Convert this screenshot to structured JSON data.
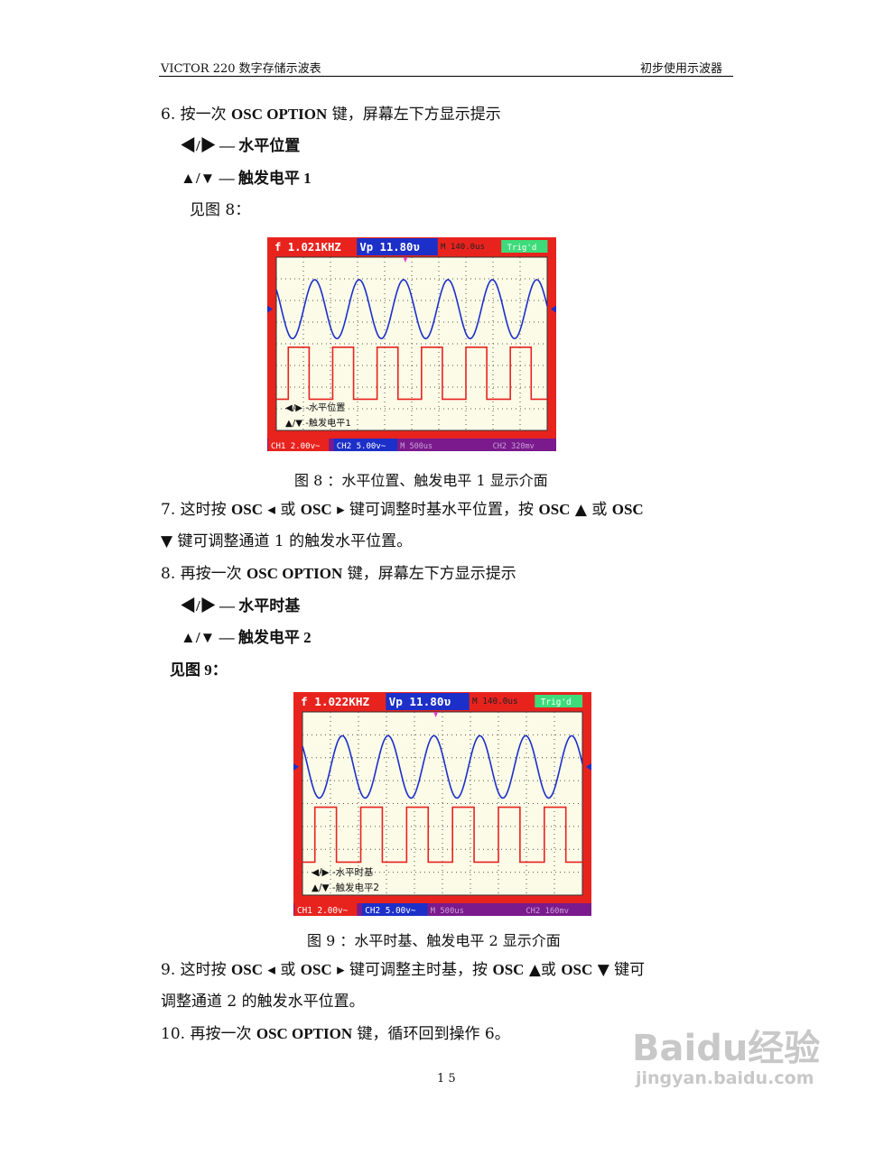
{
  "header": {
    "left": "VICTOR 220 数字存储示波表",
    "right": "初步使用示波器"
  },
  "lines": [
    {
      "parts": [
        [
          "6.  按一次 ",
          0
        ],
        [
          "OSC OPTION",
          1
        ],
        [
          " 键，屏幕左下方显示提示",
          0
        ]
      ]
    },
    {
      "parts": [
        [
          "◀/▶  —  水平位置",
          1
        ]
      ]
    },
    {
      "parts": [
        [
          "▲/▼  —  触发电平 1",
          1
        ]
      ]
    },
    {
      "parts": [
        [
          "见图 8：",
          0
        ]
      ]
    },
    {
      "parts": [
        [
          "7. 这时按 ",
          0
        ],
        [
          "OSC",
          1
        ],
        [
          " ◂ 或 ",
          0
        ],
        [
          "OSC",
          1
        ],
        [
          "  ▸ 键可调整时基水平位置，按 ",
          0
        ],
        [
          "OSC",
          1
        ],
        [
          " ▲ 或 ",
          0
        ],
        [
          "OSC",
          1
        ]
      ]
    },
    {
      "parts": [
        [
          "▼ 键可调整通道 1 的触发水平位置。",
          0
        ]
      ]
    },
    {
      "parts": [
        [
          "8. 再按一次 ",
          0
        ],
        [
          "OSC OPTION",
          1
        ],
        [
          " 键，屏幕左下方显示提示",
          0
        ]
      ]
    },
    {
      "parts": [
        [
          "◀/▶  —  水平时基",
          1
        ]
      ]
    },
    {
      "parts": [
        [
          "▲/▼  —  触发电平 2",
          1
        ]
      ]
    },
    {
      "parts": [
        [
          "见图 9：",
          1
        ]
      ]
    },
    {
      "parts": [
        [
          "9. 这时按 ",
          0
        ],
        [
          "OSC",
          1
        ],
        [
          " ◂ 或 ",
          0
        ],
        [
          "OSC",
          1
        ],
        [
          "  ▸ 键可调整主时基，按 ",
          0
        ],
        [
          "OSC",
          1
        ],
        [
          " ▲或 ",
          0
        ],
        [
          "OSC",
          1
        ],
        [
          " ▼ 键可",
          0
        ]
      ]
    },
    {
      "parts": [
        [
          "调整通道 2 的触发水平位置。",
          0
        ]
      ]
    },
    {
      "parts": [
        [
          "10. 再按一次 ",
          0
        ],
        [
          "OSC OPTION",
          1
        ],
        [
          " 键，循环回到操作 6。",
          0
        ]
      ]
    }
  ],
  "fig8": {
    "caption": "图 8 ：水平位置、触发电平 1 显示介面",
    "freq": "f 1.021KHZ",
    "vp": "Vp 11.80υ",
    "time": "M 140.0us",
    "trig": "Trig'd",
    "hint1": "◀/▶ -水平位置",
    "hint2": "▲/▼ -触发电平1",
    "ch1": "CH1 2.00v~",
    "ch2": "CH2 5.00v~",
    "mbase": "M 500us",
    "ch2trig": "CH2 320mv"
  },
  "fig9": {
    "caption": "图 9 ：水平时基、触发电平 2 显示介面",
    "freq": "f 1.022KHZ",
    "vp": "Vp 11.80υ",
    "time": "M 140.0us",
    "trig": "Trig'd",
    "hint1": "◀/▶ -水平时基",
    "hint2": "▲/▼ -触发电平2",
    "ch1": "CH1 2.00v~",
    "ch2": "CH2 5.00v~",
    "mbase": "M 500us",
    "ch2trig": "CH2 160mv"
  },
  "page_number": "1 5",
  "watermark": {
    "brand": "Baidu经验",
    "url": "jingyan.baidu.com"
  },
  "colors": {
    "ch1": "#e8231e",
    "ch2": "#1c2fc8",
    "header": "#e8231e",
    "footer": "#7a1a8c",
    "trig": "#3ddc7a",
    "grid_bg": "#fbfbe8"
  }
}
